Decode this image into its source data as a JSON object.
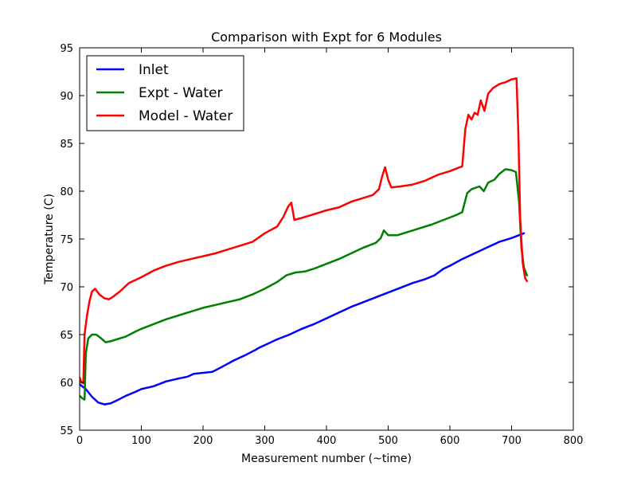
{
  "chart_data": {
    "type": "line",
    "title": "Comparison with Expt for 6 Modules",
    "xlabel": "Measurement number (~time)",
    "ylabel": "Temperature (C)",
    "xlim": [
      0,
      800
    ],
    "ylim": [
      55,
      95
    ],
    "xticks": [
      0,
      100,
      200,
      300,
      400,
      500,
      600,
      700,
      800
    ],
    "yticks": [
      55,
      60,
      65,
      70,
      75,
      80,
      85,
      90,
      95
    ],
    "grid": false,
    "legend_position": "top-left",
    "series": [
      {
        "name": "Inlet",
        "color": "#0000ff",
        "points": [
          [
            0,
            59.8
          ],
          [
            10,
            59.3
          ],
          [
            20,
            58.5
          ],
          [
            30,
            57.9
          ],
          [
            40,
            57.7
          ],
          [
            50,
            57.8
          ],
          [
            60,
            58.1
          ],
          [
            75,
            58.6
          ],
          [
            90,
            59.0
          ],
          [
            100,
            59.3
          ],
          [
            120,
            59.6
          ],
          [
            140,
            60.1
          ],
          [
            160,
            60.4
          ],
          [
            175,
            60.6
          ],
          [
            185,
            60.9
          ],
          [
            200,
            61.0
          ],
          [
            215,
            61.1
          ],
          [
            230,
            61.6
          ],
          [
            250,
            62.3
          ],
          [
            270,
            62.9
          ],
          [
            285,
            63.4
          ],
          [
            290,
            63.6
          ],
          [
            300,
            63.9
          ],
          [
            320,
            64.5
          ],
          [
            340,
            65.0
          ],
          [
            360,
            65.6
          ],
          [
            380,
            66.1
          ],
          [
            400,
            66.7
          ],
          [
            420,
            67.3
          ],
          [
            440,
            67.9
          ],
          [
            460,
            68.4
          ],
          [
            480,
            68.9
          ],
          [
            500,
            69.4
          ],
          [
            520,
            69.9
          ],
          [
            540,
            70.4
          ],
          [
            560,
            70.8
          ],
          [
            575,
            71.2
          ],
          [
            590,
            71.9
          ],
          [
            600,
            72.2
          ],
          [
            620,
            72.9
          ],
          [
            640,
            73.5
          ],
          [
            660,
            74.1
          ],
          [
            680,
            74.7
          ],
          [
            700,
            75.1
          ],
          [
            720,
            75.6
          ]
        ]
      },
      {
        "name": "Expt - Water",
        "color": "#008000",
        "points": [
          [
            0,
            58.6
          ],
          [
            5,
            58.3
          ],
          [
            8,
            58.2
          ],
          [
            10,
            63.0
          ],
          [
            14,
            64.6
          ],
          [
            20,
            65.0
          ],
          [
            27,
            65.0
          ],
          [
            35,
            64.6
          ],
          [
            42,
            64.2
          ],
          [
            50,
            64.3
          ],
          [
            60,
            64.5
          ],
          [
            75,
            64.8
          ],
          [
            90,
            65.3
          ],
          [
            100,
            65.6
          ],
          [
            120,
            66.1
          ],
          [
            140,
            66.6
          ],
          [
            160,
            67.0
          ],
          [
            180,
            67.4
          ],
          [
            200,
            67.8
          ],
          [
            220,
            68.1
          ],
          [
            240,
            68.4
          ],
          [
            260,
            68.7
          ],
          [
            280,
            69.2
          ],
          [
            300,
            69.8
          ],
          [
            320,
            70.5
          ],
          [
            335,
            71.2
          ],
          [
            350,
            71.5
          ],
          [
            365,
            71.6
          ],
          [
            380,
            71.9
          ],
          [
            400,
            72.4
          ],
          [
            420,
            72.9
          ],
          [
            440,
            73.5
          ],
          [
            460,
            74.1
          ],
          [
            480,
            74.6
          ],
          [
            488,
            75.1
          ],
          [
            493,
            75.9
          ],
          [
            500,
            75.4
          ],
          [
            515,
            75.4
          ],
          [
            535,
            75.8
          ],
          [
            555,
            76.2
          ],
          [
            570,
            76.5
          ],
          [
            590,
            77.0
          ],
          [
            610,
            77.5
          ],
          [
            620,
            77.8
          ],
          [
            628,
            79.8
          ],
          [
            635,
            80.2
          ],
          [
            648,
            80.5
          ],
          [
            655,
            80.0
          ],
          [
            662,
            80.9
          ],
          [
            672,
            81.2
          ],
          [
            680,
            81.8
          ],
          [
            690,
            82.3
          ],
          [
            700,
            82.2
          ],
          [
            707,
            82.0
          ],
          [
            712,
            79.0
          ],
          [
            716,
            74.0
          ],
          [
            720,
            72.0
          ],
          [
            725,
            71.2
          ]
        ]
      },
      {
        "name": "Model - Water",
        "color": "#ff0000",
        "points": [
          [
            0,
            60.5
          ],
          [
            3,
            60.0
          ],
          [
            6,
            59.9
          ],
          [
            8,
            65.0
          ],
          [
            12,
            67.0
          ],
          [
            16,
            68.5
          ],
          [
            20,
            69.5
          ],
          [
            25,
            69.8
          ],
          [
            32,
            69.2
          ],
          [
            40,
            68.8
          ],
          [
            48,
            68.7
          ],
          [
            55,
            69.0
          ],
          [
            65,
            69.5
          ],
          [
            80,
            70.4
          ],
          [
            100,
            71.0
          ],
          [
            120,
            71.7
          ],
          [
            140,
            72.2
          ],
          [
            160,
            72.6
          ],
          [
            180,
            72.9
          ],
          [
            200,
            73.2
          ],
          [
            220,
            73.5
          ],
          [
            240,
            73.9
          ],
          [
            260,
            74.3
          ],
          [
            280,
            74.7
          ],
          [
            300,
            75.6
          ],
          [
            320,
            76.3
          ],
          [
            330,
            77.3
          ],
          [
            338,
            78.4
          ],
          [
            343,
            78.8
          ],
          [
            348,
            77.0
          ],
          [
            360,
            77.2
          ],
          [
            380,
            77.6
          ],
          [
            400,
            78.0
          ],
          [
            420,
            78.3
          ],
          [
            440,
            78.9
          ],
          [
            460,
            79.3
          ],
          [
            475,
            79.6
          ],
          [
            485,
            80.2
          ],
          [
            490,
            81.5
          ],
          [
            495,
            82.5
          ],
          [
            500,
            81.2
          ],
          [
            505,
            80.4
          ],
          [
            520,
            80.5
          ],
          [
            540,
            80.7
          ],
          [
            560,
            81.1
          ],
          [
            580,
            81.7
          ],
          [
            600,
            82.1
          ],
          [
            612,
            82.4
          ],
          [
            620,
            82.6
          ],
          [
            625,
            86.5
          ],
          [
            630,
            88.0
          ],
          [
            635,
            87.5
          ],
          [
            640,
            88.2
          ],
          [
            645,
            88.0
          ],
          [
            650,
            89.5
          ],
          [
            656,
            88.4
          ],
          [
            662,
            90.2
          ],
          [
            670,
            90.8
          ],
          [
            680,
            91.2
          ],
          [
            690,
            91.4
          ],
          [
            700,
            91.7
          ],
          [
            708,
            91.8
          ],
          [
            711,
            86.0
          ],
          [
            714,
            77.0
          ],
          [
            718,
            72.5
          ],
          [
            722,
            70.9
          ],
          [
            725,
            70.6
          ]
        ]
      }
    ]
  }
}
